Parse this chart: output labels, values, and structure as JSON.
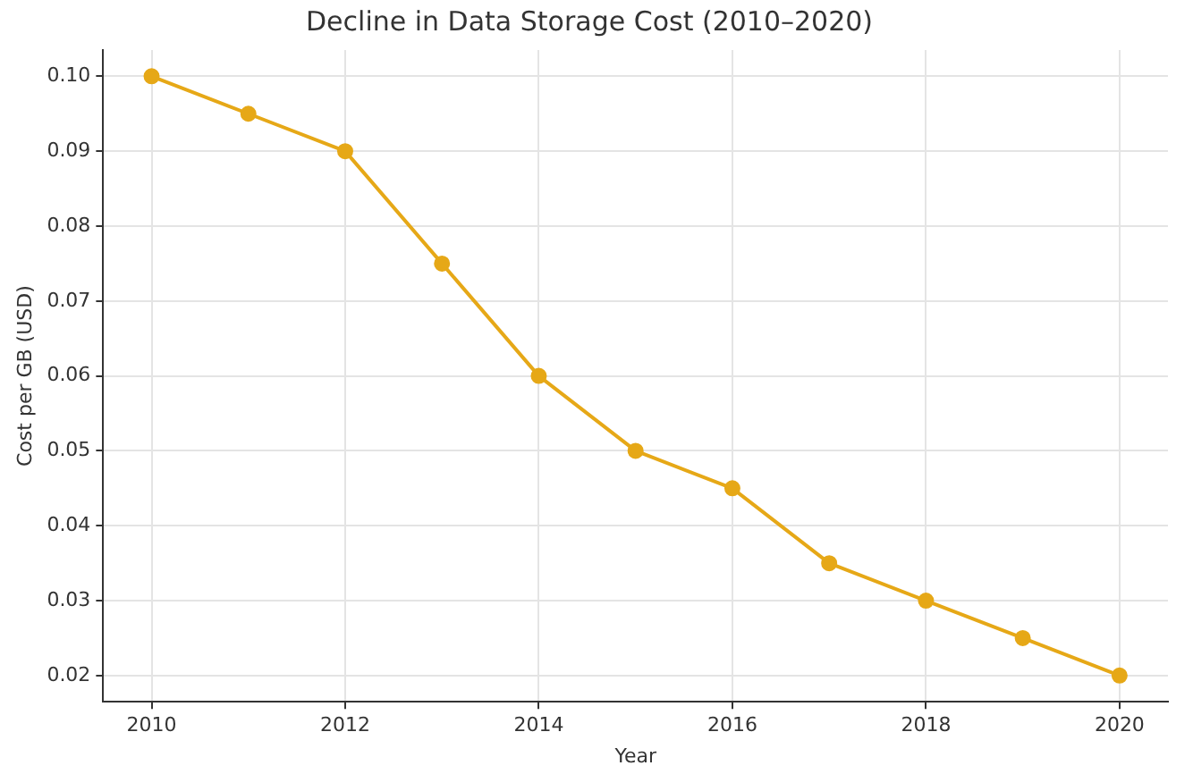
{
  "chart_data": {
    "type": "line",
    "title": "Decline in Data Storage Cost (2010–2020)",
    "xlabel": "Year",
    "ylabel": "Cost per GB (USD)",
    "x": [
      2010,
      2011,
      2012,
      2013,
      2014,
      2015,
      2016,
      2017,
      2018,
      2019,
      2020
    ],
    "series": [
      {
        "color": "#e6a817",
        "values": [
          0.1,
          0.095,
          0.09,
          0.075,
          0.06,
          0.05,
          0.045,
          0.035,
          0.03,
          0.025,
          0.02
        ]
      }
    ],
    "xlim": [
      2009.5,
      2020.5
    ],
    "xticks": [
      2010,
      2012,
      2014,
      2016,
      2018,
      2020
    ],
    "ylim": [
      0.0165,
      0.1035
    ],
    "yticks": [
      {
        "value": 0.02,
        "label": "0.02"
      },
      {
        "value": 0.03,
        "label": "0.03"
      },
      {
        "value": 0.04,
        "label": "0.04"
      },
      {
        "value": 0.05,
        "label": "0.05"
      },
      {
        "value": 0.06,
        "label": "0.06"
      },
      {
        "value": 0.07,
        "label": "0.07"
      },
      {
        "value": 0.08,
        "label": "0.08"
      },
      {
        "value": 0.09,
        "label": "0.09"
      },
      {
        "value": 0.1,
        "label": "0.10"
      }
    ],
    "grid": true,
    "marker": "circle",
    "line_style": "solid",
    "legend": false
  }
}
